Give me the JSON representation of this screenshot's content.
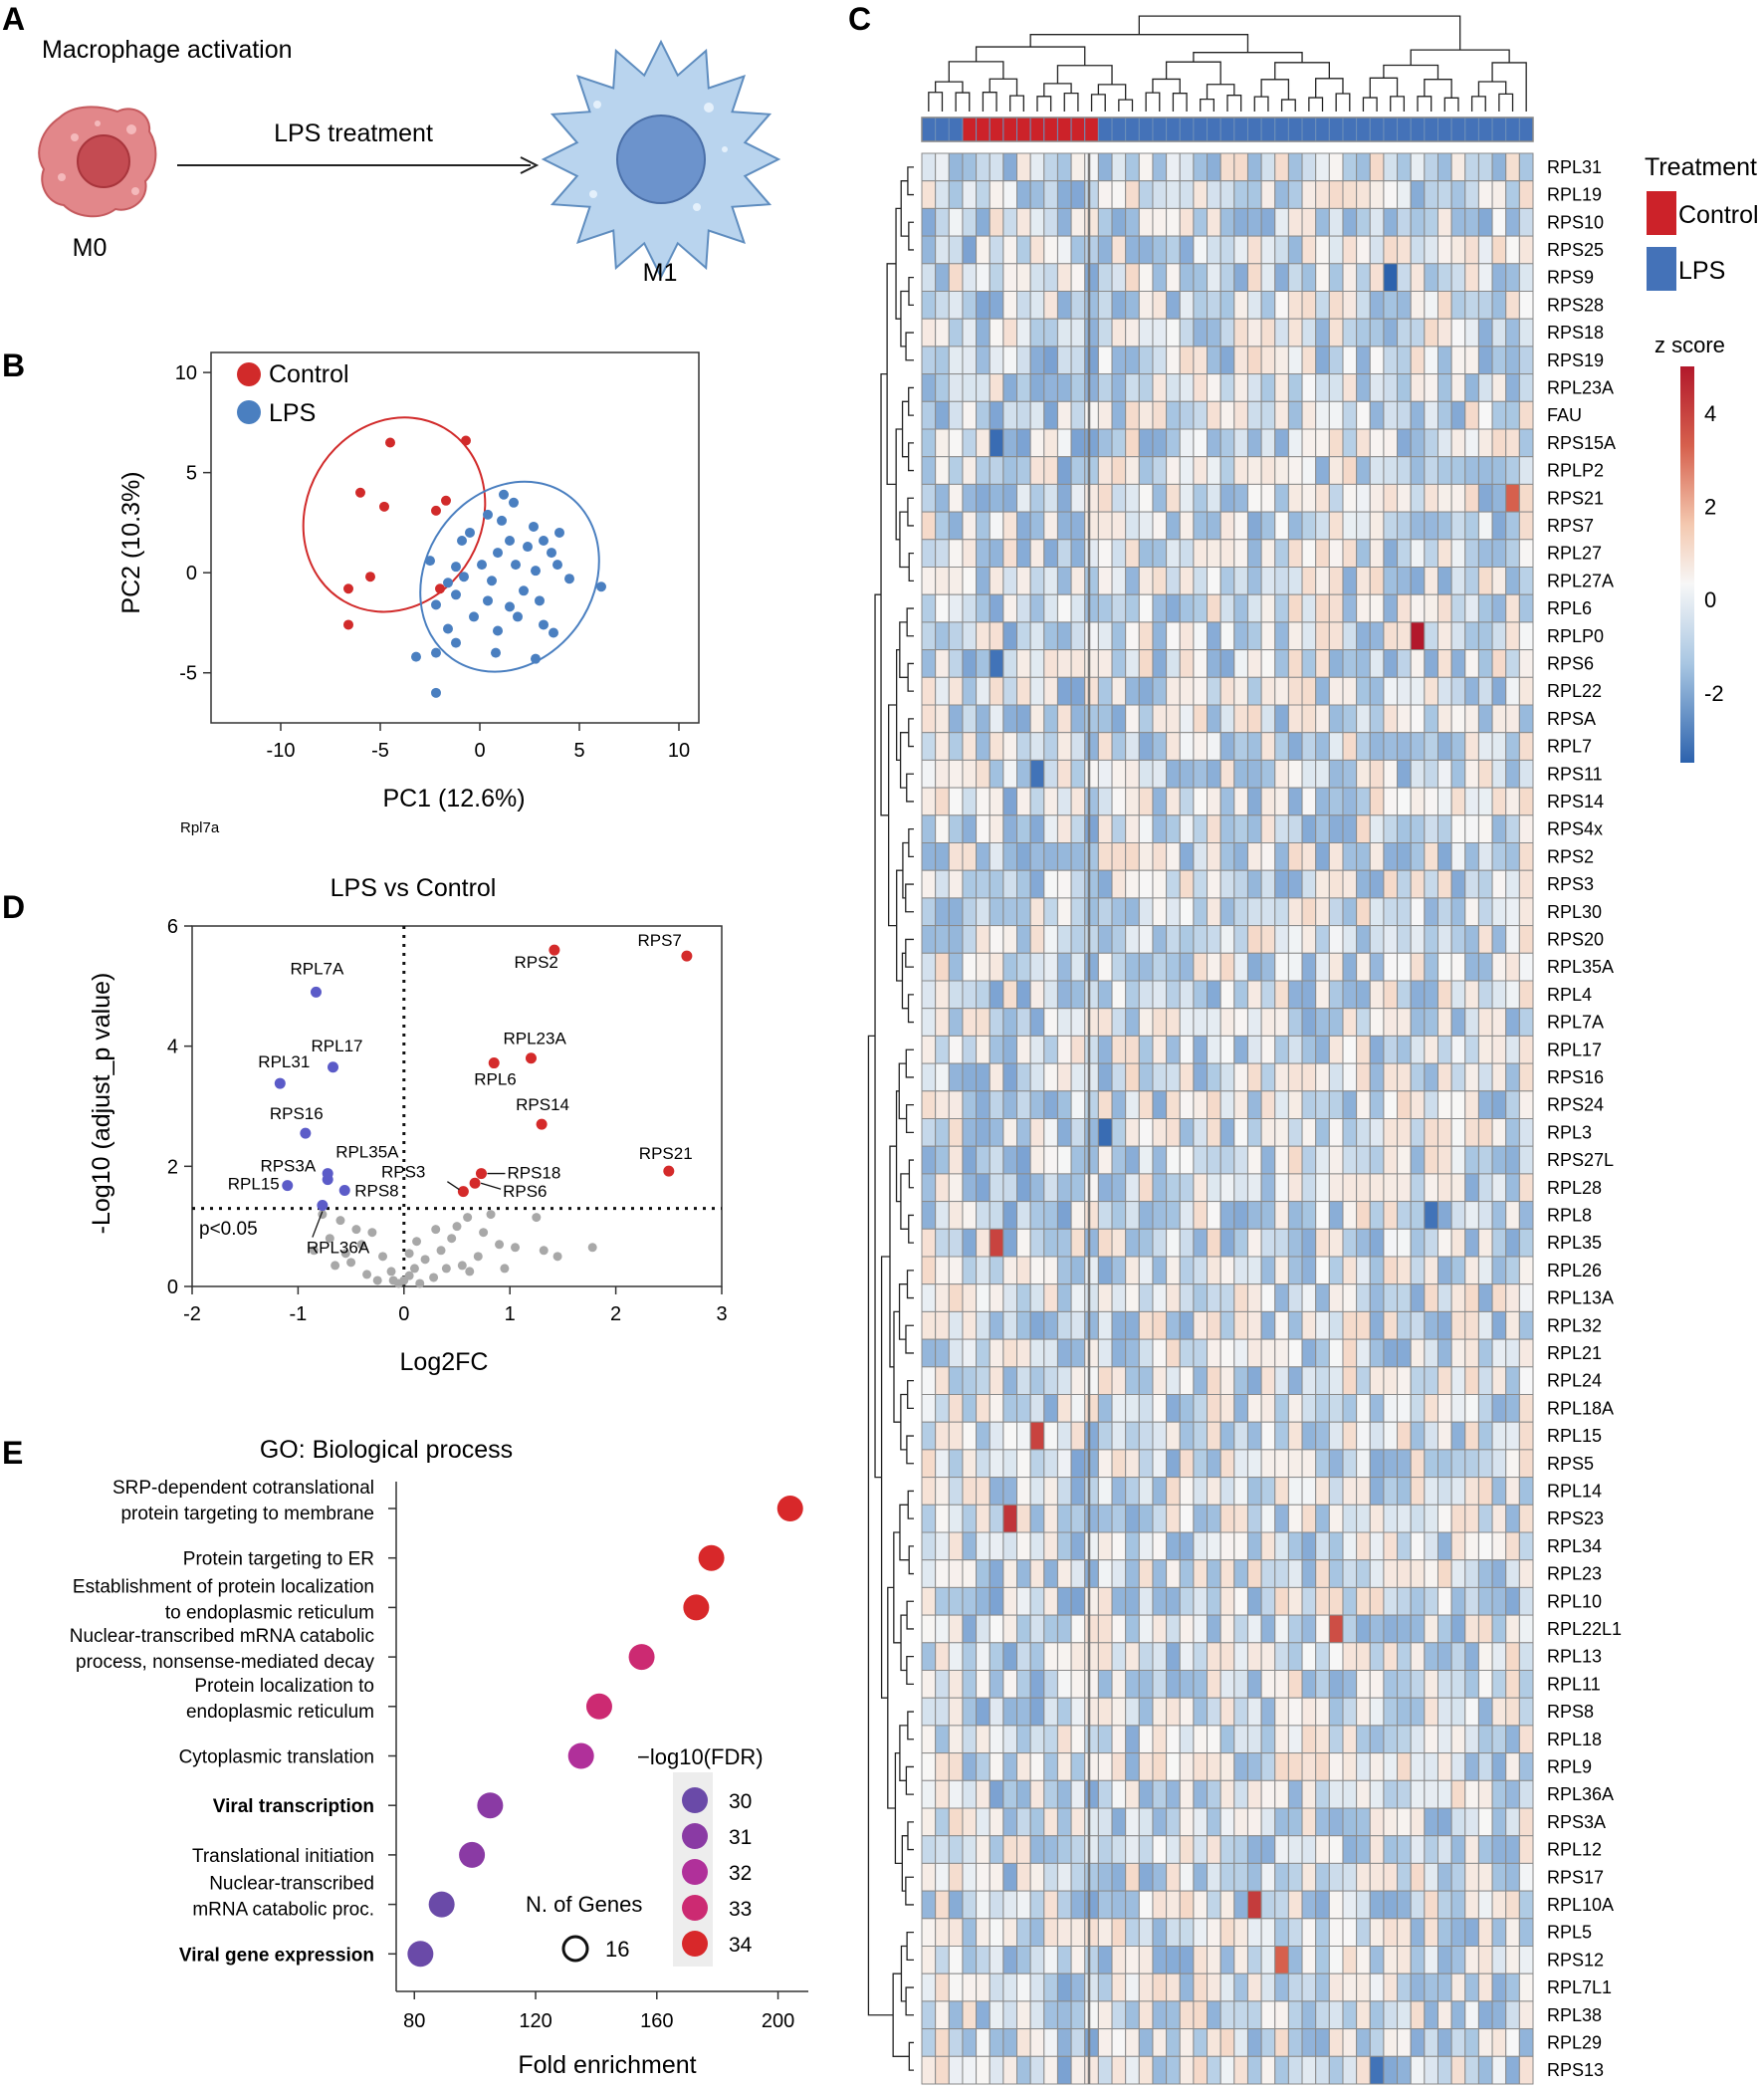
{
  "panels": {
    "A": {
      "letter": "A",
      "title": "Macrophage activation",
      "arrow_label": "LPS treatment",
      "left_cell": "M0",
      "right_cell": "M1"
    },
    "B": {
      "letter": "B",
      "footnote": "Rpl7a"
    },
    "C": {
      "letter": "C"
    },
    "D": {
      "letter": "D"
    },
    "E": {
      "letter": "E"
    }
  },
  "colors": {
    "control": "#d12a2a",
    "lps": "#4a7fc0",
    "gray": "#a8a8a8"
  },
  "chart_data": [
    {
      "id": "pca",
      "type": "scatter",
      "title": "",
      "xlabel": "PC1 (12.6%)",
      "ylabel": "PC2 (10.3%)",
      "xlim": [
        -13.5,
        11
      ],
      "ylim": [
        -7.5,
        11
      ],
      "xticks": [
        -10,
        -5,
        0,
        5,
        10
      ],
      "yticks": [
        -5,
        0,
        5,
        10
      ],
      "legend": [
        {
          "label": "Control",
          "color": "#d12a2a"
        },
        {
          "label": "LPS",
          "color": "#4a7fc0"
        }
      ],
      "ellipses": [
        {
          "series": "Control",
          "cx": -4.3,
          "cy": 2.9,
          "rx": 4.4,
          "ry": 10.0,
          "angle_deg": 30
        },
        {
          "series": "LPS",
          "cx": 1.5,
          "cy": -0.2,
          "rx": 4.2,
          "ry": 10.0,
          "angle_deg": 35
        }
      ],
      "series": [
        {
          "name": "Control",
          "points": [
            [
              -4.5,
              6.5
            ],
            [
              -0.7,
              6.6
            ],
            [
              -6,
              4
            ],
            [
              -4.8,
              3.3
            ],
            [
              -2.2,
              3.1
            ],
            [
              -1.7,
              3.6
            ],
            [
              -5.5,
              -0.2
            ],
            [
              -6.6,
              -0.8
            ],
            [
              -6.6,
              -2.6
            ],
            [
              -2,
              -0.8
            ]
          ]
        },
        {
          "name": "LPS",
          "points": [
            [
              1.2,
              3.9
            ],
            [
              1.7,
              3.5
            ],
            [
              1.1,
              2.6
            ],
            [
              2.7,
              2.3
            ],
            [
              -0.5,
              2
            ],
            [
              4,
              2
            ],
            [
              3.2,
              1.6
            ],
            [
              -0.9,
              1.6
            ],
            [
              1.5,
              1.6
            ],
            [
              2.4,
              1.3
            ],
            [
              0.9,
              1
            ],
            [
              3.6,
              1
            ],
            [
              -2.5,
              0.6
            ],
            [
              0.1,
              0.4
            ],
            [
              1.8,
              0.4
            ],
            [
              -1.2,
              0.3
            ],
            [
              2.8,
              0.1
            ],
            [
              -0.8,
              -0.2
            ],
            [
              4.5,
              -0.3
            ],
            [
              -1.6,
              -0.5
            ],
            [
              0.6,
              -0.4
            ],
            [
              2.2,
              -0.9
            ],
            [
              -1.2,
              -1.1
            ],
            [
              0.4,
              -1.4
            ],
            [
              3,
              -1.4
            ],
            [
              -2.2,
              -1.6
            ],
            [
              1.5,
              -1.7
            ],
            [
              -0.3,
              -2.2
            ],
            [
              1.9,
              -2.2
            ],
            [
              -1.6,
              -2.8
            ],
            [
              0.9,
              -2.9
            ],
            [
              3.2,
              -2.6
            ],
            [
              -3.2,
              -4.2
            ],
            [
              -2.2,
              -4
            ],
            [
              -1.2,
              -3.5
            ],
            [
              0.8,
              -4
            ],
            [
              3.7,
              -3
            ],
            [
              2.8,
              -4.3
            ],
            [
              -2.2,
              -6
            ],
            [
              6.1,
              -0.7
            ],
            [
              0.4,
              2.9
            ],
            [
              3.9,
              0.4
            ]
          ]
        }
      ]
    },
    {
      "id": "volcano",
      "type": "scatter",
      "title": "LPS vs Control",
      "xlabel": "Log2FC",
      "ylabel": "-Log10 (adjust_p value)",
      "xlim": [
        -2,
        3
      ],
      "ylim": [
        0,
        6
      ],
      "xticks": [
        -2,
        -1,
        0,
        1,
        2,
        3
      ],
      "yticks": [
        0,
        2,
        4,
        6
      ],
      "threshold_y": 1.3,
      "threshold_label": "p<0.05",
      "labeled_points": [
        {
          "gene": "RPS7",
          "x": 2.67,
          "y": 5.5,
          "group": "up"
        },
        {
          "gene": "RPS2",
          "x": 1.42,
          "y": 5.6,
          "group": "up"
        },
        {
          "gene": "RPL23A",
          "x": 1.2,
          "y": 3.8,
          "group": "up"
        },
        {
          "gene": "RPL6",
          "x": 0.85,
          "y": 3.72,
          "group": "up"
        },
        {
          "gene": "RPS14",
          "x": 1.3,
          "y": 2.7,
          "group": "up"
        },
        {
          "gene": "RPS21",
          "x": 2.5,
          "y": 1.92,
          "group": "up"
        },
        {
          "gene": "RPS18",
          "x": 0.73,
          "y": 1.88,
          "group": "up"
        },
        {
          "gene": "RPS6",
          "x": 0.67,
          "y": 1.72,
          "group": "up"
        },
        {
          "gene": "RPS3",
          "x": 0.56,
          "y": 1.58,
          "group": "up"
        },
        {
          "gene": "RPL7A",
          "x": -0.83,
          "y": 4.9,
          "group": "down"
        },
        {
          "gene": "RPL17",
          "x": -0.67,
          "y": 3.65,
          "group": "down"
        },
        {
          "gene": "RPL31",
          "x": -1.17,
          "y": 3.38,
          "group": "down"
        },
        {
          "gene": "RPS16",
          "x": -0.93,
          "y": 2.55,
          "group": "down"
        },
        {
          "gene": "RPL35A",
          "x": -0.72,
          "y": 1.78,
          "group": "down"
        },
        {
          "gene": "RPS3A",
          "x": -0.72,
          "y": 1.88,
          "group": "down"
        },
        {
          "gene": "RPS8",
          "x": -0.56,
          "y": 1.6,
          "group": "down"
        },
        {
          "gene": "RPL15",
          "x": -1.1,
          "y": 1.68,
          "group": "down"
        },
        {
          "gene": "RPL36A",
          "x": -0.77,
          "y": 1.35,
          "group": "down"
        }
      ],
      "gray_points": [
        [
          -0.77,
          1.2
        ],
        [
          -0.6,
          1.1
        ],
        [
          -0.45,
          0.95
        ],
        [
          -0.7,
          0.8
        ],
        [
          -0.85,
          0.6
        ],
        [
          -0.55,
          0.55
        ],
        [
          -0.4,
          0.7
        ],
        [
          -0.3,
          0.9
        ],
        [
          -0.65,
          0.35
        ],
        [
          -0.5,
          0.4
        ],
        [
          -0.35,
          0.2
        ],
        [
          -0.2,
          0.5
        ],
        [
          -0.12,
          0.25
        ],
        [
          -0.1,
          0.1
        ],
        [
          -0.05,
          0.05
        ],
        [
          0,
          0.1
        ],
        [
          0.05,
          0.18
        ],
        [
          0.1,
          0.3
        ],
        [
          0.15,
          0.05
        ],
        [
          0.2,
          0.45
        ],
        [
          0.28,
          0.15
        ],
        [
          0.35,
          0.6
        ],
        [
          0.4,
          0.3
        ],
        [
          0.45,
          0.8
        ],
        [
          0.5,
          1.0
        ],
        [
          0.55,
          0.35
        ],
        [
          0.6,
          1.15
        ],
        [
          0.7,
          0.5
        ],
        [
          0.75,
          0.9
        ],
        [
          0.82,
          1.2
        ],
        [
          0.9,
          0.7
        ],
        [
          0.95,
          0.3
        ],
        [
          1.05,
          0.65
        ],
        [
          1.25,
          1.15
        ],
        [
          1.32,
          0.6
        ],
        [
          1.45,
          0.5
        ],
        [
          1.78,
          0.65
        ],
        [
          0.3,
          0.95
        ],
        [
          0.05,
          0.55
        ],
        [
          -0.25,
          0.1
        ],
        [
          0.62,
          0.25
        ],
        [
          0.12,
          0.75
        ]
      ]
    },
    {
      "id": "go_dotplot",
      "type": "scatter",
      "title": "GO: Biological process",
      "xlabel": "Fold enrichment",
      "ylabel": "",
      "xlim": [
        74,
        210
      ],
      "xticks": [
        80,
        120,
        160,
        200
      ],
      "legend_color_title": "−log10(FDR)",
      "legend_color": [
        {
          "label": "30",
          "color": "#6a4aa8"
        },
        {
          "label": "31",
          "color": "#8a3aa4"
        },
        {
          "label": "32",
          "color": "#b0309a"
        },
        {
          "label": "33",
          "color": "#cc2a72"
        },
        {
          "label": "34",
          "color": "#d8282a"
        }
      ],
      "legend_size_title": "N. of Genes",
      "legend_size_value": "16",
      "terms": [
        {
          "lines": [
            "SRP-dependent cotranslational",
            "protein targeting to membrane"
          ],
          "fold": 204,
          "fdr": 34,
          "bold": false
        },
        {
          "lines": [
            "Protein targeting to ER"
          ],
          "fold": 178,
          "fdr": 34,
          "bold": false
        },
        {
          "lines": [
            "Establishment of protein localization",
            "to endoplasmic reticulum"
          ],
          "fold": 173,
          "fdr": 34,
          "bold": false
        },
        {
          "lines": [
            "Nuclear-transcribed mRNA catabolic",
            "process, nonsense-mediated decay"
          ],
          "fold": 155,
          "fdr": 33.5,
          "bold": false
        },
        {
          "lines": [
            "Protein localization to",
            "endoplasmic reticulum"
          ],
          "fold": 141,
          "fdr": 33,
          "bold": false
        },
        {
          "lines": [
            "Cytoplasmic translation"
          ],
          "fold": 135,
          "fdr": 32.5,
          "bold": false
        },
        {
          "lines": [
            "Viral transcription"
          ],
          "fold": 105,
          "fdr": 31,
          "bold": true
        },
        {
          "lines": [
            "Translational initiation"
          ],
          "fold": 99,
          "fdr": 31,
          "bold": false
        },
        {
          "lines": [
            "Nuclear-transcribed",
            "mRNA catabolic proc."
          ],
          "fold": 89,
          "fdr": 30,
          "bold": false
        },
        {
          "lines": [
            "Viral gene expression"
          ],
          "fold": 82,
          "fdr": 29.5,
          "bold": true
        }
      ]
    },
    {
      "id": "heatmap",
      "type": "heatmap",
      "title": "",
      "legend_treatment_title": "Treatment",
      "legend_treatment": [
        {
          "label": "Control",
          "color": "#cc2229"
        },
        {
          "label": "LPS",
          "color": "#4472b8"
        }
      ],
      "colorbar_title": "z score",
      "colorbar_ticks": [
        4,
        2,
        0,
        -2
      ],
      "colorbar_range": [
        -3.5,
        5
      ],
      "n_columns": 45,
      "column_groups": [
        "LPS",
        "LPS",
        "LPS",
        "Control",
        "Control",
        "Control",
        "Control",
        "Control",
        "Control",
        "Control",
        "Control",
        "Control",
        "Control",
        "LPS",
        "LPS",
        "LPS",
        "LPS",
        "LPS",
        "LPS",
        "LPS",
        "LPS",
        "LPS",
        "LPS",
        "LPS",
        "LPS",
        "LPS",
        "LPS",
        "LPS",
        "LPS",
        "LPS",
        "LPS",
        "LPS",
        "LPS",
        "LPS",
        "LPS",
        "LPS",
        "LPS",
        "LPS",
        "LPS",
        "LPS",
        "LPS",
        "LPS",
        "LPS",
        "LPS",
        "LPS"
      ],
      "row_labels": [
        "RPL31",
        "RPL19",
        "RPS10",
        "RPS25",
        "RPS9",
        "RPS28",
        "RPS18",
        "RPS19",
        "RPL23A",
        "FAU",
        "RPS15A",
        "RPLP2",
        "RPS21",
        "RPS7",
        "RPL27",
        "RPL27A",
        "RPL6",
        "RPLP0",
        "RPS6",
        "RPL22",
        "RPSA",
        "RPL7",
        "RPS11",
        "RPS14",
        "RPS4x",
        "RPS2",
        "RPS3",
        "RPL30",
        "RPS20",
        "RPL35A",
        "RPL4",
        "RPL7A",
        "RPL17",
        "RPS16",
        "RPS24",
        "RPL3",
        "RPS27L",
        "RPL28",
        "RPL8",
        "RPL35",
        "RPL26",
        "RPL13A",
        "RPL32",
        "RPL21",
        "RPL24",
        "RPL18A",
        "RPL15",
        "RPS5",
        "RPL14",
        "RPS23",
        "RPL34",
        "RPL23",
        "RPL10",
        "RPL22L1",
        "RPL13",
        "RPL11",
        "RPS8",
        "RPL18",
        "RPL9",
        "RPL36A",
        "RPS3A",
        "RPL12",
        "RPS17",
        "RPL10A",
        "RPL5",
        "RPS12",
        "RPL7L1",
        "RPL38",
        "RPL29",
        "RPS13"
      ],
      "highlights": [
        {
          "row": "RPLP0",
          "col": 36,
          "z": 5.0
        },
        {
          "row": "RPS9",
          "col": 34,
          "z": -3.5
        },
        {
          "row": "RPL3",
          "col": 13,
          "z": -3.2
        },
        {
          "row": "RPL8",
          "col": 37,
          "z": -3.0
        },
        {
          "row": "RPS15A",
          "col": 5,
          "z": -3.2
        },
        {
          "row": "RPS11",
          "col": 8,
          "z": -3.0
        },
        {
          "row": "RPS6",
          "col": 5,
          "z": -3.0
        },
        {
          "row": "RPL35",
          "col": 5,
          "z": 3.8
        },
        {
          "row": "RPS23",
          "col": 6,
          "z": 4.2
        },
        {
          "row": "RPL15",
          "col": 8,
          "z": 3.8
        },
        {
          "row": "RPL10A",
          "col": 24,
          "z": 4.0
        },
        {
          "row": "RPL22L1",
          "col": 30,
          "z": 3.5
        },
        {
          "row": "RPS12",
          "col": 26,
          "z": 3.0
        },
        {
          "row": "RPS13",
          "col": 33,
          "z": -3.0
        },
        {
          "row": "RPS21",
          "col": 43,
          "z": 3.0
        }
      ]
    }
  ]
}
